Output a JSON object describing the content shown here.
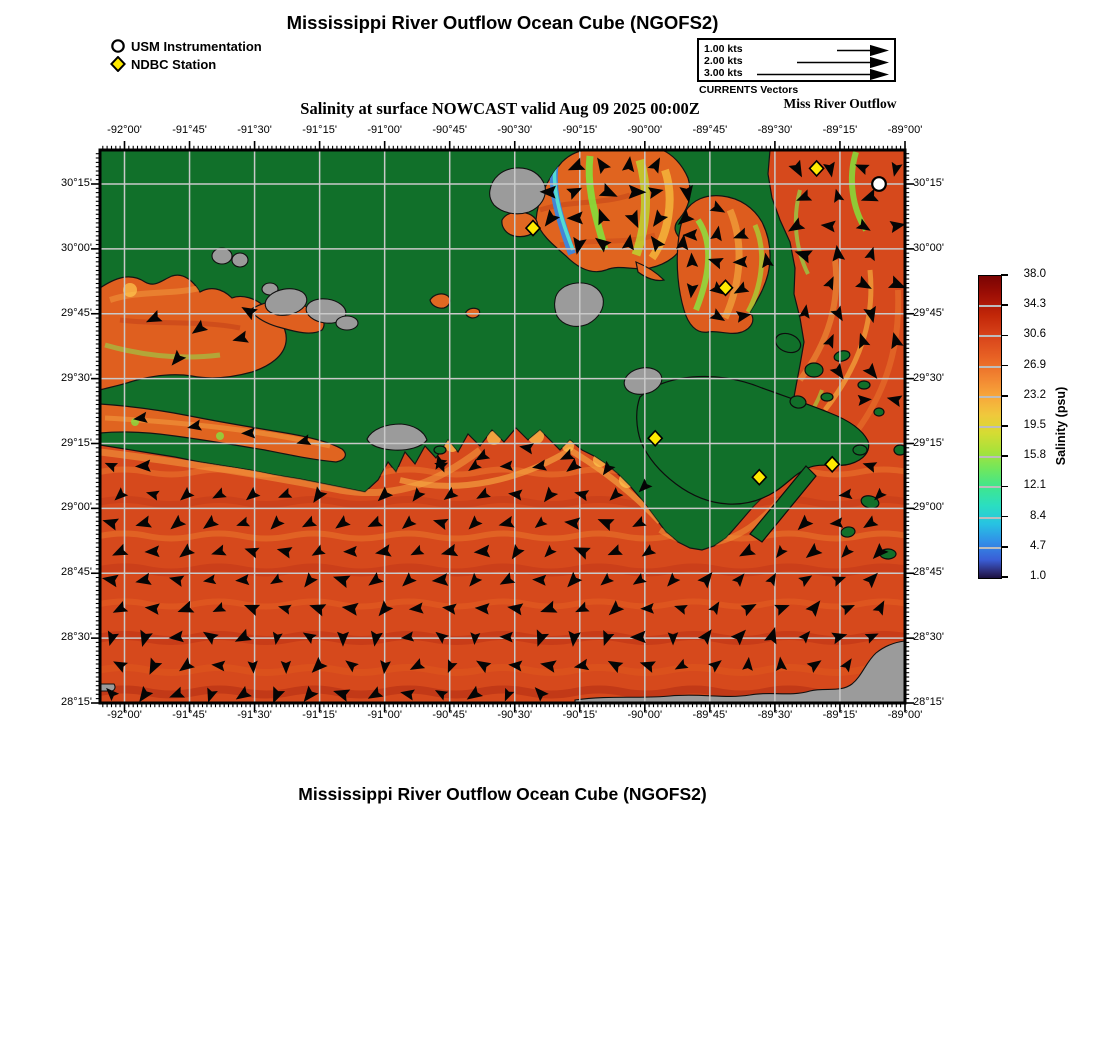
{
  "header": {
    "title": "Mississippi River Outflow Ocean Cube (NGOFS2)",
    "outflow_label": "Miss River Outflow"
  },
  "footer": {
    "title": "Mississippi River Outflow Ocean Cube (NGOFS2)"
  },
  "marker_legend": {
    "items": [
      {
        "symbol": "circle",
        "label": "USM Instrumentation"
      },
      {
        "symbol": "diamond",
        "label": "NDBC Station"
      }
    ]
  },
  "vector_key": {
    "caption": "CURRENTS Vectors",
    "entries": [
      {
        "label": "1.00 kts",
        "speed": 1.0
      },
      {
        "label": "2.00 kts",
        "speed": 2.0
      },
      {
        "label": "3.00 kts",
        "speed": 3.0
      }
    ]
  },
  "chart_data": {
    "type": "heatmap",
    "title": "Salinity at surface NOWCAST valid Aug 09 2025 00:00Z",
    "variable": "Salinity at surface",
    "cycle": "NOWCAST",
    "valid_time": "Aug 09 2025 00:00Z",
    "x_axis": {
      "ticks": [
        "-92°00'",
        "-91°45'",
        "-91°30'",
        "-91°15'",
        "-91°00'",
        "-90°45'",
        "-90°30'",
        "-90°15'",
        "-90°00'",
        "-89°45'",
        "-89°30'",
        "-89°15'",
        "-89°00'"
      ],
      "lon_start_deg": -92.0,
      "lon_end_deg": -89.0,
      "tick_interval_min": 15,
      "minor_tick_min": 1
    },
    "y_axis": {
      "ticks": [
        "30°15'",
        "30°00'",
        "29°45'",
        "29°30'",
        "29°15'",
        "29°00'",
        "28°45'",
        "28°30'",
        "28°15'"
      ],
      "lat_start_deg": 28.25,
      "lat_end_deg": 30.25,
      "tick_interval_min": 15,
      "minor_tick_min": 1
    },
    "colorbar": {
      "label": "Salinity (psu)",
      "tick_labels": [
        "38.0",
        "34.3",
        "30.6",
        "26.9",
        "23.2",
        "19.5",
        "15.8",
        "12.1",
        "8.4",
        "4.7",
        "1.0"
      ],
      "min": 1.0,
      "max": 38.0,
      "gradient": [
        "#7a0403 0%",
        "#9d0e05 6%",
        "#c22708 13%",
        "#d8441b 20%",
        "#e86224 27%",
        "#f28732 34%",
        "#f7a83b 40%",
        "#f0c83c 46%",
        "#d5dc33 52%",
        "#a8e23a 58%",
        "#6fe75e 64%",
        "#3fe68f 70%",
        "#2bdec1 76%",
        "#27c3e2 82%",
        "#318fe8 88%",
        "#3a5ed6 94%",
        "#2c2a72 98%",
        "#1a1040 100%"
      ]
    },
    "stations": {
      "usm_instrumentation": [
        {
          "lon": -89.1,
          "lat": 30.25
        }
      ],
      "ndbc": [
        {
          "lon": -90.43,
          "lat": 30.08
        },
        {
          "lon": -89.34,
          "lat": 30.31
        },
        {
          "lon": -89.69,
          "lat": 29.85
        },
        {
          "lon": -89.96,
          "lat": 29.27
        },
        {
          "lon": -89.56,
          "lat": 29.12
        },
        {
          "lon": -89.28,
          "lat": 29.17
        }
      ]
    },
    "currents": {
      "units": "kts",
      "key_speeds": [
        1.0,
        2.0,
        3.0
      ],
      "dominant_offshore_direction": "westward"
    }
  },
  "colors": {
    "land_green": "#11702a",
    "island_gray": "#9b9b9b",
    "water_base": "#d6491c",
    "water_deep": "#bf3517",
    "water_bright": "#f59f40",
    "streak_green": "#84df3a",
    "streak_cyan": "#52dcd2",
    "streak_blue": "#3b86e0",
    "gridline": "#c9c9c9",
    "arrow": "#050505",
    "ndbc_yellow": "#ffea00",
    "usm_white": "#ffffff"
  }
}
